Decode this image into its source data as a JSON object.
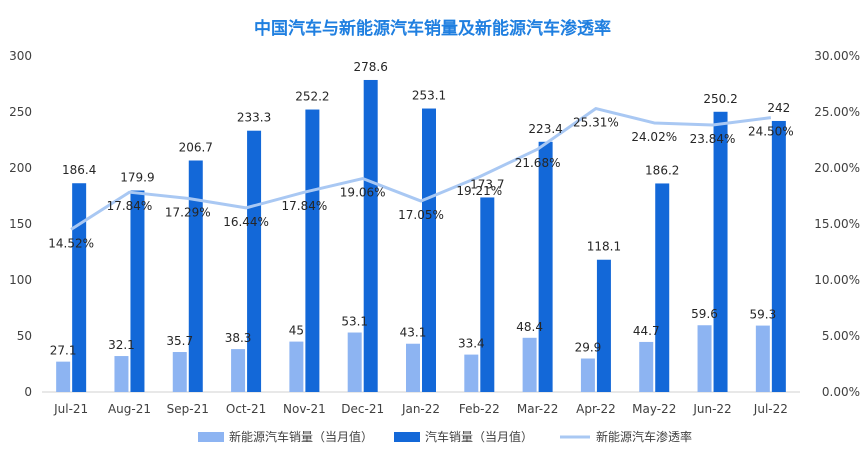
{
  "chart_data": {
    "type": "bar",
    "title": "中国汽车与新能源汽车销量及新能源汽车渗透率",
    "categories": [
      "Jul-21",
      "Aug-21",
      "Sep-21",
      "Oct-21",
      "Nov-21",
      "Dec-21",
      "Jan-22",
      "Feb-22",
      "Mar-22",
      "Apr-22",
      "May-22",
      "Jun-22",
      "Jul-22"
    ],
    "series": [
      {
        "name": "新能源汽车销量（当月值）",
        "type": "bar",
        "axis": "left",
        "color": "#8db4f2",
        "values": [
          27.1,
          32.1,
          35.7,
          38.3,
          45,
          53.1,
          43.1,
          33.4,
          48.4,
          29.9,
          44.7,
          59.6,
          59.3
        ],
        "labels": [
          "27.1",
          "32.1",
          "35.7",
          "38.3",
          "45",
          "53.1",
          "43.1",
          "33.4",
          "48.4",
          "29.9",
          "44.7",
          "59.6",
          "59.3"
        ]
      },
      {
        "name": "汽车销量（当月值）",
        "type": "bar",
        "axis": "left",
        "color": "#1368d8",
        "values": [
          186.4,
          179.9,
          206.7,
          233.3,
          252.2,
          278.6,
          253.1,
          173.7,
          223.4,
          118.1,
          186.2,
          250.2,
          242
        ],
        "labels": [
          "186.4",
          "179.9",
          "206.7",
          "233.3",
          "252.2",
          "278.6",
          "253.1",
          "173.7",
          "223.4",
          "118.1",
          "186.2",
          "250.2",
          "242"
        ]
      },
      {
        "name": "新能源汽车渗透率",
        "type": "line",
        "axis": "right",
        "color": "#a9c8f3",
        "values": [
          14.52,
          17.84,
          17.29,
          16.44,
          17.84,
          19.06,
          17.05,
          19.21,
          21.68,
          25.31,
          24.02,
          23.84,
          24.5
        ],
        "labels": [
          "14.52%",
          "17.84%",
          "17.29%",
          "16.44%",
          "17.84%",
          "19.06%",
          "17.05%",
          "19.21%",
          "21.68%",
          "25.31%",
          "24.02%",
          "23.84%",
          "24.50%"
        ]
      }
    ],
    "y_left": {
      "min": 0,
      "max": 300,
      "ticks": [
        "0",
        "50",
        "100",
        "150",
        "200",
        "250",
        "300"
      ]
    },
    "y_right": {
      "min": 0,
      "max": 30,
      "ticks": [
        "0.00%",
        "5.00%",
        "10.00%",
        "15.00%",
        "20.00%",
        "25.00%",
        "30.00%"
      ]
    },
    "grid": false,
    "legend_position": "bottom"
  }
}
